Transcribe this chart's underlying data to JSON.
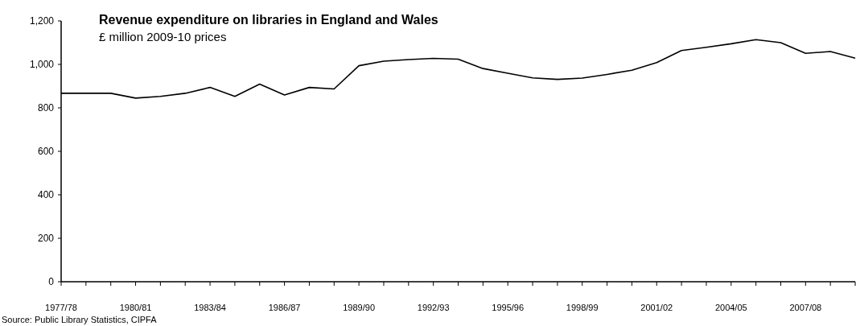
{
  "chart_data": {
    "type": "line",
    "title": "Revenue expenditure on libraries in England and Wales",
    "subtitle": "£ million 2009-10 prices",
    "categories": [
      "1977/78",
      null,
      null,
      "1980/81",
      null,
      null,
      "1983/84",
      null,
      null,
      "1986/87",
      null,
      null,
      "1989/90",
      null,
      null,
      "1992/93",
      null,
      null,
      "1995/96",
      null,
      null,
      "1998/99",
      null,
      null,
      "2001/02",
      null,
      null,
      "2004/05",
      null,
      null,
      "2007/08",
      null,
      null
    ],
    "series": [
      {
        "color": "#000000",
        "values": [
          867,
          867,
          867,
          845,
          853,
          867,
          894,
          853,
          909,
          859,
          894,
          887,
          994,
          1015,
          1022,
          1028,
          1024,
          981,
          959,
          938,
          931,
          937,
          954,
          973,
          1008,
          1064,
          1079,
          1095,
          1114,
          1100,
          1051,
          1059,
          1029
        ]
      }
    ],
    "ylim": [
      0,
      1200
    ],
    "yticks": [
      0,
      200,
      400,
      600,
      800,
      {
        "value": 1000,
        "label": "1,000"
      },
      {
        "value": 1200,
        "label": "1,200"
      }
    ],
    "grid": false,
    "marker": "none",
    "line_style": "solid",
    "annotations": [
      "Source: Public Library Statistics, CIPFA"
    ]
  }
}
